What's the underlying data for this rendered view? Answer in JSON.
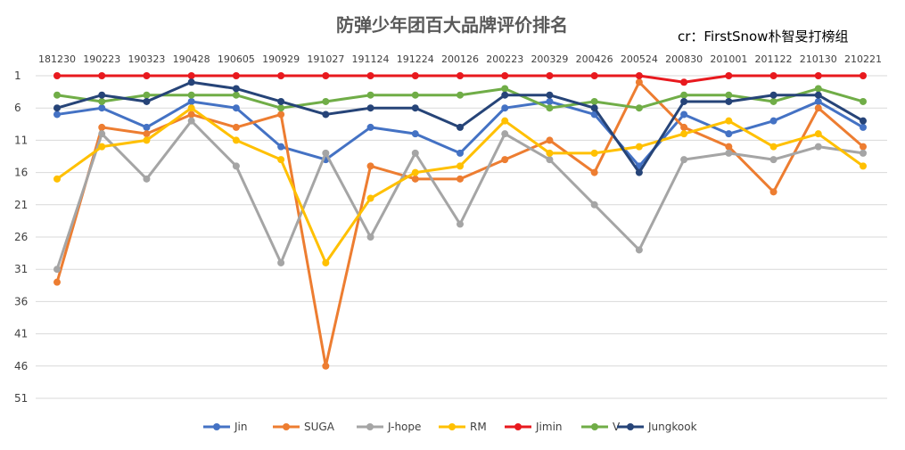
{
  "chart_data": {
    "type": "line",
    "title": "防弹少年团百大品牌评价排名",
    "credit": "cr：FirstSnow朴智旻打榜组",
    "categories": [
      "181230",
      "190223",
      "190323",
      "190428",
      "190605",
      "190929",
      "191027",
      "191124",
      "191224",
      "200126",
      "200223",
      "200329",
      "200426",
      "200524",
      "200830",
      "201001",
      "201122",
      "210130",
      "210221"
    ],
    "y_ticks": [
      1,
      6,
      11,
      16,
      21,
      26,
      31,
      36,
      41,
      46,
      51
    ],
    "ylim": [
      1,
      51
    ],
    "y_inverted": true,
    "grid": "horizontal",
    "legend_position": "bottom",
    "series": [
      {
        "name": "Jin",
        "color": "#4472c4",
        "values": [
          7,
          6,
          9,
          5,
          6,
          12,
          14,
          9,
          10,
          13,
          6,
          5,
          7,
          15,
          7,
          10,
          8,
          5,
          9
        ]
      },
      {
        "name": "SUGA",
        "color": "#ed7d31",
        "values": [
          33,
          9,
          10,
          7,
          9,
          7,
          46,
          15,
          17,
          17,
          14,
          11,
          16,
          2,
          9,
          12,
          19,
          6,
          12
        ]
      },
      {
        "name": "J-hope",
        "color": "#a5a5a5",
        "values": [
          31,
          10,
          17,
          8,
          15,
          30,
          13,
          26,
          13,
          24,
          10,
          14,
          21,
          28,
          14,
          13,
          14,
          12,
          13
        ]
      },
      {
        "name": "RM",
        "color": "#ffc000",
        "values": [
          17,
          12,
          11,
          6,
          11,
          14,
          30,
          20,
          16,
          15,
          8,
          13,
          13,
          12,
          10,
          8,
          12,
          10,
          15
        ]
      },
      {
        "name": "Jimin",
        "color": "#e8191e",
        "values": [
          1,
          1,
          1,
          1,
          1,
          1,
          1,
          1,
          1,
          1,
          1,
          1,
          1,
          1,
          2,
          1,
          1,
          1,
          1
        ]
      },
      {
        "name": "V",
        "color": "#70ad47",
        "values": [
          4,
          5,
          4,
          4,
          4,
          6,
          5,
          4,
          4,
          4,
          3,
          6,
          5,
          6,
          4,
          4,
          5,
          3,
          5
        ]
      },
      {
        "name": "Jungkook",
        "color": "#264478",
        "values": [
          6,
          4,
          5,
          2,
          3,
          5,
          7,
          6,
          6,
          9,
          4,
          4,
          6,
          16,
          5,
          5,
          4,
          4,
          8
        ]
      }
    ]
  }
}
